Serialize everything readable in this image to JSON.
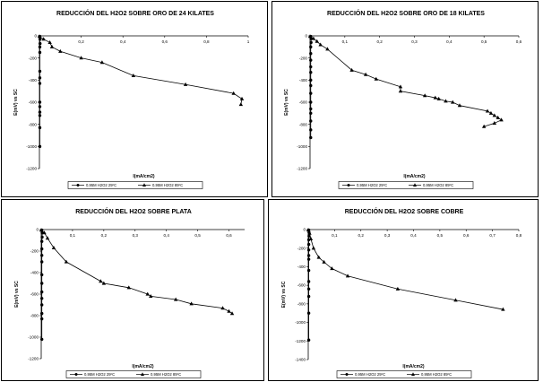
{
  "chart_data": [
    {
      "type": "scatter",
      "title": "REDUCCIÓN DEL H2O2 SOBRE ORO DE 24 KILATES",
      "xlabel": "I(mA/cm2)",
      "ylabel": "E(mV) vs SC",
      "xlim": [
        0,
        1
      ],
      "ylim": [
        -1200,
        0
      ],
      "xticks": [
        0,
        0.2,
        0.4,
        0.6,
        0.8,
        1
      ],
      "xtick_labels": [
        "0",
        "0,2",
        "0,4",
        "0,6",
        "0,8",
        "1"
      ],
      "yticks": [
        0,
        -200,
        -400,
        -600,
        -800,
        -1000,
        -1200
      ],
      "ytick_labels": [
        "0",
        "-200",
        "-400",
        "-600",
        "-800",
        "-1000",
        "-1200"
      ],
      "legend_placement": "bottom",
      "series": [
        {
          "name": "0,95M H2O2 25ºC",
          "marker": "circle",
          "x": [
            0.002,
            0.003,
            0.003,
            0.002,
            0.002,
            0.002,
            0.002,
            0.002,
            0.002,
            0.002,
            0.002,
            0.002,
            0.002,
            0.002
          ],
          "y": [
            -5,
            -30,
            -70,
            -100,
            -150,
            -320,
            -380,
            -430,
            -600,
            -640,
            -690,
            -720,
            -830,
            -1000
          ]
        },
        {
          "name": "0,95M H2O2 85ºC",
          "marker": "triangle",
          "x": [
            0,
            0.02,
            0.05,
            0.06,
            0.1,
            0.2,
            0.3,
            0.45,
            0.7,
            0.93,
            0.97,
            0.965
          ],
          "y": [
            -5,
            -30,
            -60,
            -100,
            -140,
            -200,
            -240,
            -360,
            -440,
            -520,
            -570,
            -620
          ]
        }
      ]
    },
    {
      "type": "scatter",
      "title": "REDUCCIÓN DEL H2O2 SOBRE ORO DE 18 KILATES",
      "xlabel": "I(mA/cm2)",
      "ylabel": "E(mV) vs SC",
      "xlim": [
        0,
        0.6
      ],
      "ylim": [
        -1200,
        0
      ],
      "xticks": [
        0,
        0.1,
        0.2,
        0.3,
        0.4,
        0.5,
        0.6
      ],
      "xtick_labels": [
        "0",
        "0,1",
        "0,2",
        "0,3",
        "0,4",
        "0,5",
        "0,6"
      ],
      "yticks": [
        0,
        -200,
        -400,
        -600,
        -800,
        -1000,
        -1200
      ],
      "ytick_labels": [
        "0",
        "-200",
        "-400",
        "-600",
        "-800",
        "-1000",
        "-1200"
      ],
      "legend_placement": "bottom",
      "series": [
        {
          "name": "0,95M H2O2 25ºC",
          "marker": "circle",
          "x": [
            0.002,
            0.003,
            0.003,
            0.002,
            0.002,
            0.002,
            0.002,
            0.002,
            0.002,
            0.002,
            0.002,
            0.002,
            0.002,
            0.002,
            0.002,
            0.002,
            0.002
          ],
          "y": [
            -5,
            -25,
            -60,
            -100,
            -160,
            -220,
            -280,
            -330,
            -400,
            -450,
            -520,
            -600,
            -660,
            -700,
            -770,
            -850,
            -920
          ]
        },
        {
          "name": "0,95M H2O2 85ºC",
          "marker": "triangle",
          "x": [
            0,
            0.01,
            0.02,
            0.03,
            0.05,
            0.12,
            0.16,
            0.19,
            0.26,
            0.26,
            0.33,
            0.36,
            0.37,
            0.39,
            0.41,
            0.43,
            0.51,
            0.52,
            0.53,
            0.54,
            0.55,
            0.53,
            0.5
          ],
          "y": [
            -5,
            -25,
            -50,
            -80,
            -120,
            -310,
            -350,
            -390,
            -460,
            -500,
            -540,
            -560,
            -570,
            -590,
            -600,
            -630,
            -680,
            -700,
            -720,
            -740,
            -760,
            -790,
            -820
          ]
        }
      ]
    },
    {
      "type": "scatter",
      "title": "REDUCCIÓN DEL H2O2 SOBRE PLATA",
      "xlabel": "I(mA/cm2)",
      "ylabel": "E(mV) vs SC",
      "xlim": [
        0,
        0.65
      ],
      "ylim": [
        -1200,
        0
      ],
      "xticks": [
        0,
        0.1,
        0.2,
        0.3,
        0.4,
        0.5,
        0.6
      ],
      "xtick_labels": [
        "0",
        "0,1",
        "0,2",
        "0,3",
        "0,4",
        "0,5",
        "0,6"
      ],
      "yticks": [
        0,
        -200,
        -400,
        -600,
        -800,
        -1000,
        -1200
      ],
      "ytick_labels": [
        "0",
        "-200",
        "-400",
        "-600",
        "-800",
        "-1000",
        "-1200"
      ],
      "legend_placement": "bottom",
      "series": [
        {
          "name": "0,95M H2O2 25ºC",
          "marker": "circle",
          "x": [
            0.002,
            0.003,
            0.003,
            0.002,
            0.002,
            0.002,
            0.002,
            0.002,
            0.002,
            0.002,
            0.002,
            0.002,
            0.002,
            0.002,
            0.002
          ],
          "y": [
            -5,
            -30,
            -70,
            -110,
            -180,
            -240,
            -300,
            -420,
            -500,
            -580,
            -640,
            -700,
            -780,
            -830,
            -1020
          ]
        },
        {
          "name": "0,95M H2O2 85ºC",
          "marker": "triangle",
          "x": [
            0,
            0.01,
            0.02,
            0.04,
            0.08,
            0.19,
            0.2,
            0.28,
            0.34,
            0.35,
            0.43,
            0.48,
            0.58,
            0.6,
            0.61
          ],
          "y": [
            -5,
            -30,
            -80,
            -170,
            -300,
            -480,
            -500,
            -540,
            -600,
            -620,
            -650,
            -690,
            -730,
            -760,
            -780
          ]
        }
      ]
    },
    {
      "type": "scatter",
      "title": "REDUCCIÓN DEL H2O2 SOBRE COBRE",
      "xlabel": "I(mA/cm2)",
      "ylabel": "E(mV) vs SC",
      "xlim": [
        0,
        0.8
      ],
      "ylim": [
        -1400,
        0
      ],
      "xticks": [
        0,
        0.1,
        0.2,
        0.3,
        0.4,
        0.5,
        0.6,
        0.7,
        0.8
      ],
      "xtick_labels": [
        "0",
        "0,1",
        "0,2",
        "0,3",
        "0,4",
        "0,5",
        "0,6",
        "0,7",
        "0,8"
      ],
      "yticks": [
        0,
        -200,
        -400,
        -600,
        -800,
        -1000,
        -1200,
        -1400
      ],
      "ytick_labels": [
        "0",
        "-200",
        "-400",
        "-600",
        "-800",
        "-1000",
        "-1200",
        "-1400"
      ],
      "legend_placement": "bottom",
      "series": [
        {
          "name": "0,95M H2O2 25ºC",
          "marker": "circle",
          "x": [
            0.002,
            0.003,
            0.003,
            0.002,
            0.002,
            0.002,
            0.002,
            0.002,
            0.002,
            0.002,
            0.002,
            0.002,
            0.002,
            0.002
          ],
          "y": [
            -5,
            -30,
            -70,
            -110,
            -160,
            -220,
            -280,
            -320,
            -440,
            -560,
            -640,
            -720,
            -900,
            -1190
          ]
        },
        {
          "name": "0,95M H2O2 85ºC",
          "marker": "triangle",
          "x": [
            0,
            0.005,
            0.01,
            0.02,
            0.04,
            0.06,
            0.09,
            0.15,
            0.34,
            0.56,
            0.74
          ],
          "y": [
            -5,
            -40,
            -100,
            -200,
            -300,
            -350,
            -420,
            -500,
            -640,
            -760,
            -860
          ]
        }
      ]
    }
  ]
}
